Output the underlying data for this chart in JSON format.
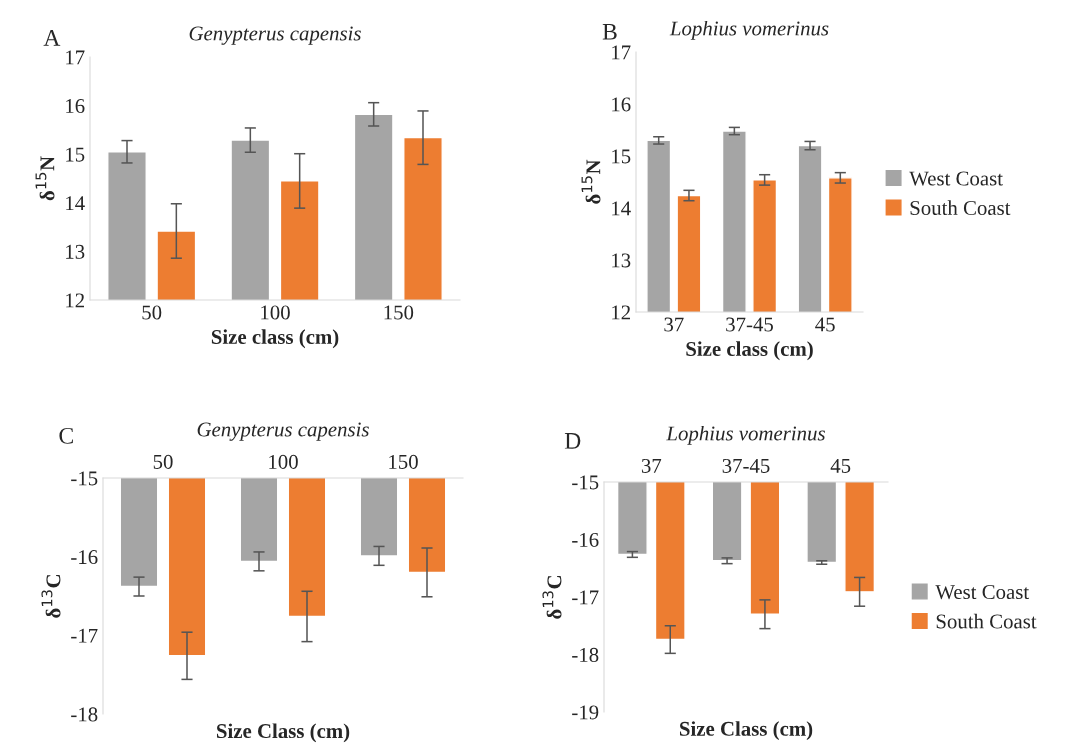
{
  "chart_data": [
    {
      "type": "bar",
      "title": "Genypterus capensis",
      "annotations": [
        "A"
      ],
      "xlabel": "Size class (cm)",
      "ylabel": "δ$^{15}$N",
      "categories": [
        "50",
        "100",
        "150"
      ],
      "series": [
        {
          "color": "#a5a5a5",
          "values": [
            15.05,
            15.29,
            15.82
          ],
          "errors": [
            0.23,
            0.25,
            0.24
          ]
        },
        {
          "color": "#ed7d31",
          "values": [
            13.42,
            14.45,
            15.34
          ],
          "errors": [
            0.56,
            0.56,
            0.55
          ]
        }
      ],
      "ylim": [
        12,
        17
      ],
      "yticks": [
        12,
        13,
        14,
        15,
        16,
        17
      ],
      "grid": false,
      "legend": false
    },
    {
      "type": "bar",
      "title": "Lophius vomerinus",
      "annotations": [
        "B"
      ],
      "xlabel": "Size class (cm)",
      "ylabel": "δ$^{15}$N",
      "categories": [
        "37",
        "37-45",
        "45"
      ],
      "series": [
        {
          "name": "West Coast",
          "color": "#a5a5a5",
          "values": [
            15.3,
            15.48,
            15.2
          ],
          "errors": [
            0.07,
            0.07,
            0.08
          ]
        },
        {
          "name": "South Coast",
          "color": "#ed7d31",
          "values": [
            14.24,
            14.54,
            14.58
          ],
          "errors": [
            0.1,
            0.1,
            0.1
          ]
        }
      ],
      "ylim": [
        12,
        17
      ],
      "yticks": [
        12,
        13,
        14,
        15,
        16,
        17
      ],
      "grid": false,
      "legend": "right"
    },
    {
      "type": "bar",
      "title": "Genypterus capensis",
      "annotations": [
        "C"
      ],
      "xlabel": "Size Class (cm)",
      "ylabel": "δ$^{13}$C",
      "categories": [
        "50",
        "100",
        "150"
      ],
      "series": [
        {
          "color": "#a5a5a5",
          "values": [
            -16.38,
            -16.06,
            -15.99
          ],
          "errors": [
            0.12,
            0.12,
            0.12
          ]
        },
        {
          "color": "#ed7d31",
          "values": [
            -17.26,
            -16.76,
            -16.2
          ],
          "errors": [
            0.3,
            0.32,
            0.31
          ]
        }
      ],
      "ylim": [
        -18,
        -15
      ],
      "yticks": [
        -18,
        -17,
        -16,
        -15
      ],
      "grid": false,
      "legend": false
    },
    {
      "type": "bar",
      "title": "Lophius vomerinus",
      "annotations": [
        "D"
      ],
      "xlabel": "Size Class (cm)",
      "ylabel": "δ$^{13}$C",
      "categories": [
        "37",
        "37-45",
        "45"
      ],
      "series": [
        {
          "name": "West Coast",
          "color": "#a5a5a5",
          "values": [
            -16.26,
            -16.37,
            -16.4
          ],
          "errors": [
            0.05,
            0.05,
            0.03
          ]
        },
        {
          "name": "South Coast",
          "color": "#ed7d31",
          "values": [
            -17.74,
            -17.3,
            -16.91
          ],
          "errors": [
            0.24,
            0.25,
            0.25
          ]
        }
      ],
      "ylim": [
        -19,
        -15
      ],
      "yticks": [
        -19,
        -18,
        -17,
        -16,
        -15
      ],
      "grid": false,
      "legend": "right"
    }
  ]
}
